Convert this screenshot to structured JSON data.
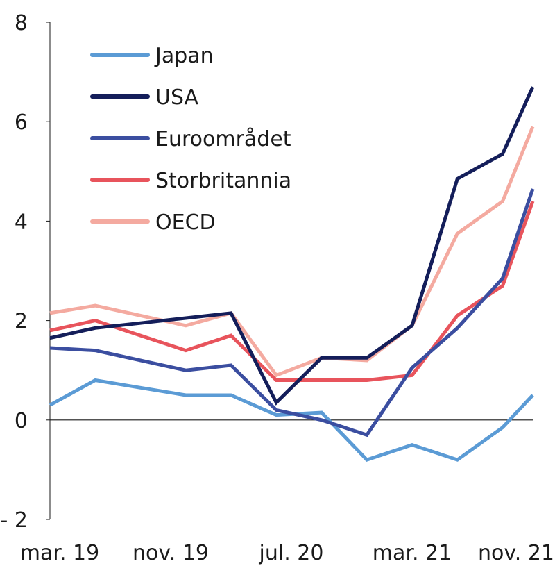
{
  "chart_data": {
    "type": "line",
    "title": "",
    "xlabel": "",
    "ylabel": "",
    "ylim": [
      -2,
      8
    ],
    "xlim": [
      0,
      32
    ],
    "grid": false,
    "legend_position": "top-left",
    "x_tick_labels": [
      "mar. 19",
      "nov. 19",
      "jul. 20",
      "mar. 21",
      "nov. 21"
    ],
    "x_tick_positions": [
      0,
      8,
      16,
      24,
      32
    ],
    "y_tick_values": [
      -2,
      0,
      2,
      4,
      6,
      8
    ],
    "y_tick_labels": [
      "- 2",
      "0",
      "2",
      "4",
      "6",
      "8"
    ],
    "x": [
      0,
      3,
      6,
      9,
      12,
      15,
      18,
      21,
      24,
      27,
      30,
      32
    ],
    "series": [
      {
        "name": "Japan",
        "color": "#5b9bd5",
        "values": [
          0.3,
          0.8,
          0.65,
          0.5,
          0.5,
          0.1,
          0.15,
          -0.8,
          -0.5,
          -0.8,
          -0.15,
          0.5
        ]
      },
      {
        "name": "USA",
        "color": "#141e5a",
        "values": [
          1.65,
          1.85,
          1.95,
          2.05,
          2.15,
          0.35,
          1.25,
          1.25,
          1.9,
          4.85,
          5.35,
          6.7
        ]
      },
      {
        "name": "Euroområdet",
        "color": "#3b4ea0",
        "values": [
          1.45,
          1.4,
          1.2,
          1.0,
          1.1,
          0.2,
          0.0,
          -0.3,
          1.05,
          1.85,
          2.85,
          4.65
        ]
      },
      {
        "name": "Storbritannia",
        "color": "#e8545c",
        "values": [
          1.8,
          2.0,
          1.7,
          1.4,
          1.7,
          0.8,
          0.8,
          0.8,
          0.9,
          2.1,
          2.7,
          4.4
        ]
      },
      {
        "name": "OECD",
        "color": "#f4aaa0",
        "values": [
          2.15,
          2.3,
          2.1,
          1.9,
          2.15,
          0.9,
          1.25,
          1.2,
          1.9,
          3.75,
          4.4,
          5.9
        ]
      }
    ]
  }
}
